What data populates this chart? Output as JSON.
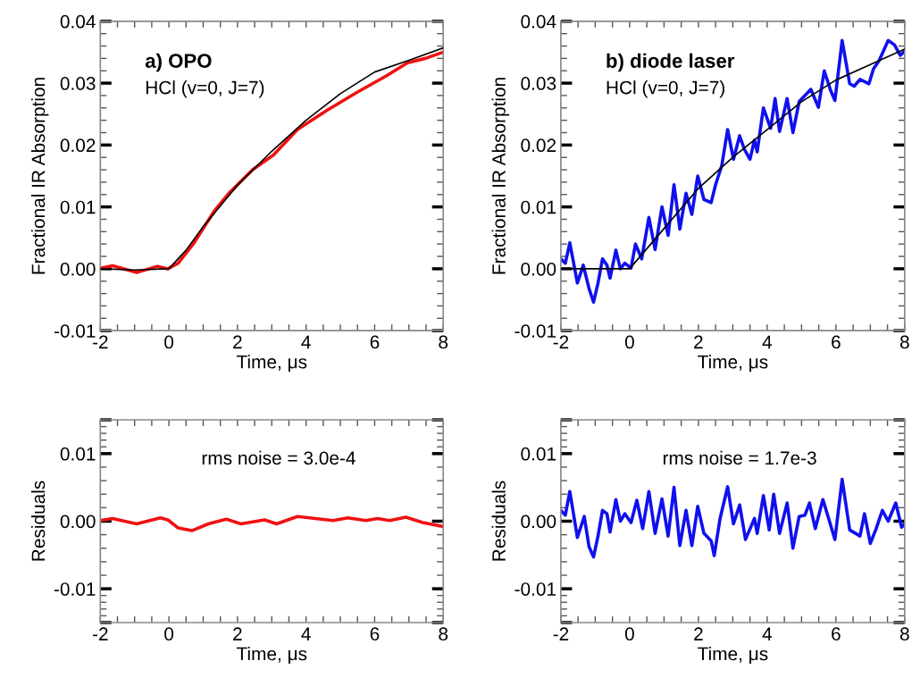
{
  "chart_data": [
    {
      "type": "line",
      "xlabel": "Time, μs",
      "ylabel": "Fractional IR Absorption",
      "xlim": [
        -2,
        8
      ],
      "xticks": [
        -2,
        0,
        2,
        4,
        6,
        8
      ],
      "ylim": [
        -0.01,
        0.04
      ],
      "yticks": [
        -0.01,
        {
          "value": 0,
          "label": "0.00"
        },
        0.01,
        0.02,
        0.03,
        0.04
      ],
      "annotations": [
        "a) OPO",
        "HCl (v=0, J=7)"
      ],
      "grid": false,
      "legend": false,
      "series": [
        {
          "color": "#ee1111",
          "x": [
            -2,
            -1.64,
            -0.94,
            -0.33,
            -0.03,
            0.27,
            0.71,
            1.32,
            1.75,
            2.44,
            3.05,
            3.75,
            4.61,
            5.48,
            6.35,
            6.96,
            7.48,
            8.0
          ],
          "values": [
            0.0001,
            0.0005,
            -0.0006,
            0.0004,
            0.0,
            0.0009,
            0.004,
            0.0093,
            0.0122,
            0.016,
            0.0184,
            0.0225,
            0.0256,
            0.0285,
            0.0312,
            0.0333,
            0.034,
            0.035
          ]
        },
        {
          "color": "#000000",
          "x": [
            -2,
            -1,
            0,
            0.5,
            1,
            2,
            3,
            4,
            5,
            6,
            7,
            8
          ],
          "values": [
            0,
            -0.0002,
            0,
            0.003,
            0.0068,
            0.0135,
            0.019,
            0.024,
            0.0283,
            0.0318,
            0.0337,
            0.0357
          ]
        }
      ]
    },
    {
      "type": "line",
      "xlabel": "Time, μs",
      "ylabel": "Fractional IR Absorption",
      "xlim": [
        -2,
        8
      ],
      "xticks": [
        -2,
        0,
        2,
        4,
        6,
        8
      ],
      "ylim": [
        -0.01,
        0.04
      ],
      "yticks": [
        -0.01,
        {
          "value": 0,
          "label": "0.00"
        },
        0.01,
        0.02,
        0.03,
        0.04
      ],
      "annotations": [
        "b) diode laser",
        "HCl (v=0, J=7)"
      ],
      "grid": false,
      "legend": false,
      "series": [
        {
          "color": "#1010ee",
          "x": [
            -2,
            -1.87,
            -1.74,
            -1.52,
            -1.35,
            -1.18,
            -1.05,
            -0.92,
            -0.79,
            -0.66,
            -0.57,
            -0.4,
            -0.27,
            -0.14,
            0.04,
            0.17,
            0.35,
            0.56,
            0.74,
            0.94,
            1.12,
            1.29,
            1.46,
            1.64,
            1.81,
            1.98,
            2.16,
            2.37,
            2.5,
            2.68,
            2.85,
            3.02,
            3.2,
            3.33,
            3.5,
            3.63,
            3.71,
            3.89,
            4.1,
            4.23,
            4.36,
            4.58,
            4.75,
            4.93,
            5.27,
            5.49,
            5.66,
            5.84,
            5.97,
            6.18,
            6.4,
            6.53,
            6.7,
            6.96,
            7.09,
            7.26,
            7.52,
            7.7,
            7.87,
            8.0
          ],
          "values": [
            0.0016,
            0.0009,
            0.0042,
            -0.0023,
            0.0006,
            -0.0032,
            -0.0054,
            -0.0023,
            0.0016,
            0.0006,
            -0.0015,
            0.003,
            0,
            0.0009,
            0.0001,
            0.004,
            0.0016,
            0.0083,
            0.0031,
            0.01,
            0.0054,
            0.0136,
            0.0064,
            0.0122,
            0.0088,
            0.015,
            0.0112,
            0.0107,
            0.0136,
            0.0167,
            0.0225,
            0.0177,
            0.0215,
            0.0194,
            0.0177,
            0.0208,
            0.0189,
            0.026,
            0.0227,
            0.0275,
            0.0222,
            0.0275,
            0.022,
            0.027,
            0.029,
            0.0261,
            0.032,
            0.0289,
            0.0272,
            0.0369,
            0.0299,
            0.0295,
            0.0306,
            0.0299,
            0.0323,
            0.0337,
            0.0369,
            0.0362,
            0.0345,
            0.0352
          ]
        },
        {
          "color": "#000000",
          "x": [
            -2,
            0,
            1,
            2,
            3,
            4,
            5,
            6,
            7,
            8
          ],
          "values": [
            0,
            0,
            0.0065,
            0.013,
            0.018,
            0.0225,
            0.027,
            0.0305,
            0.033,
            0.0355
          ]
        }
      ]
    },
    {
      "type": "line",
      "xlabel": "Time, μs",
      "ylabel": "Residuals",
      "xlim": [
        -2,
        8
      ],
      "xticks": [
        -2,
        0,
        2,
        4,
        6,
        8
      ],
      "ylim": [
        -0.015,
        0.015
      ],
      "yticks": [
        {
          "value": -0.015,
          "label": null
        },
        -0.01,
        {
          "value": 0,
          "label": "0.00"
        },
        0.01,
        {
          "value": 0.015,
          "label": null
        }
      ],
      "annotations": [
        "rms noise = 3.0e-4"
      ],
      "grid": false,
      "legend": false,
      "series": [
        {
          "color": "#ee1111",
          "x": [
            -2,
            -1.64,
            -0.94,
            -0.25,
            -0.03,
            0.27,
            0.67,
            1.15,
            1.67,
            2.1,
            2.79,
            3.14,
            3.75,
            4.27,
            4.79,
            5.22,
            5.74,
            6.09,
            6.44,
            6.91,
            7.4,
            8.0
          ],
          "values": [
            0.0001,
            0.0004,
            -0.0004,
            0.0005,
            0.0002,
            -0.001,
            -0.0014,
            -0.0004,
            0.0003,
            -0.0004,
            0.0002,
            -0.0004,
            0.0007,
            0.0004,
            0.0001,
            0.0005,
            0.0001,
            0.0004,
            0.0001,
            0.0006,
            -0.0002,
            -0.0008
          ]
        }
      ]
    },
    {
      "type": "line",
      "xlabel": "Time, μs",
      "ylabel": "Residuals",
      "xlim": [
        -2,
        8
      ],
      "xticks": [
        -2,
        0,
        2,
        4,
        6,
        8
      ],
      "ylim": [
        -0.015,
        0.015
      ],
      "yticks": [
        {
          "value": -0.015,
          "label": null
        },
        -0.01,
        {
          "value": 0,
          "label": "0.00"
        },
        0.01,
        {
          "value": 0.015,
          "label": null
        }
      ],
      "annotations": [
        "rms noise = 1.7e-3"
      ],
      "grid": false,
      "legend": false,
      "series": [
        {
          "color": "#1010ee",
          "x": [
            -2,
            -1.87,
            -1.74,
            -1.52,
            -1.32,
            -1.18,
            -1.05,
            -0.92,
            -0.79,
            -0.66,
            -0.57,
            -0.4,
            -0.27,
            -0.14,
            0.04,
            0.21,
            0.38,
            0.56,
            0.74,
            0.94,
            1.12,
            1.29,
            1.46,
            1.64,
            1.81,
            1.98,
            2.16,
            2.37,
            2.46,
            2.63,
            2.85,
            3.02,
            3.2,
            3.37,
            3.63,
            3.71,
            3.89,
            4.06,
            4.19,
            4.36,
            4.58,
            4.75,
            4.93,
            5.1,
            5.23,
            5.4,
            5.62,
            5.8,
            5.97,
            6.18,
            6.4,
            6.57,
            6.7,
            6.83,
            7.0,
            7.17,
            7.35,
            7.52,
            7.74,
            7.91,
            8.0
          ],
          "values": [
            0.0016,
            0.0009,
            0.0044,
            -0.0024,
            0.0007,
            -0.0038,
            -0.0053,
            -0.0022,
            0.0016,
            0.0011,
            -0.0016,
            0.0032,
            0,
            0.0011,
            -0.0002,
            0.0031,
            -0.0011,
            0.0044,
            -0.0018,
            0.0033,
            -0.0022,
            0.005,
            -0.0036,
            0.0016,
            -0.0036,
            0.0022,
            -0.0018,
            -0.0029,
            -0.0051,
            0.0004,
            0.0051,
            -0.0004,
            0.0024,
            -0.0027,
            0.0004,
            -0.0018,
            0.0038,
            -0.0013,
            0.004,
            -0.0018,
            0.0027,
            -0.004,
            0.0007,
            0.0009,
            0.0027,
            -0.0011,
            0.0032,
            0.0002,
            -0.0027,
            0.0062,
            -0.0013,
            -0.0018,
            -0.0022,
            0.0011,
            -0.0033,
            -0.0011,
            0.0016,
            0,
            0.0027,
            -0.0009,
            -0.0004
          ]
        }
      ]
    }
  ]
}
